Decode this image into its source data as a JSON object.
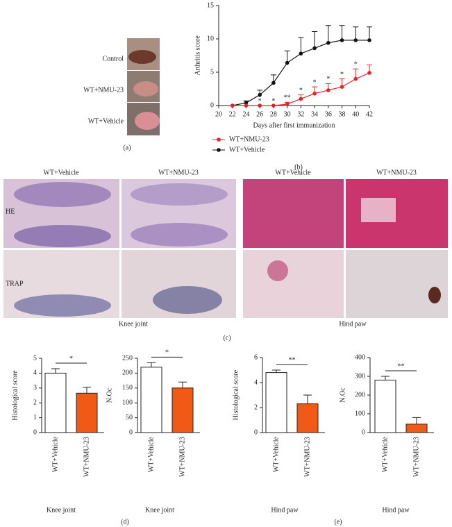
{
  "panel_labels": {
    "a": "(a)",
    "b": "(b)",
    "c": "(c)",
    "d": "(d)",
    "e": "(e)"
  },
  "photos": {
    "rows": [
      "Control",
      "WT+NMU-23",
      "WT+Vehicle"
    ]
  },
  "histology": {
    "columns": [
      "WT+Vehicle",
      "WT+NMU-23",
      "WT+Vehicle",
      "WT+NMU-23"
    ],
    "rows": [
      "HE",
      "TRAP"
    ],
    "captions": [
      "Knee joint",
      "Hind paw"
    ]
  },
  "chart_data": [
    {
      "type": "line",
      "ylabel": "Arthritis score",
      "xlabel": "Days after first immunization",
      "x": [
        22,
        24,
        26,
        28,
        30,
        32,
        34,
        36,
        38,
        40,
        42
      ],
      "series": [
        {
          "name": "WT+NMU-23",
          "color": "#e8202a",
          "values": [
            0,
            0,
            0,
            0,
            0.2,
            1,
            1.8,
            2.3,
            2.8,
            4,
            4.9
          ],
          "errors": [
            0,
            0,
            0,
            0,
            0.3,
            0.6,
            1,
            1,
            1.2,
            1.5,
            1.2
          ]
        },
        {
          "name": "WT+Vehicle",
          "color": "#111111",
          "values": [
            0,
            0.4,
            1.6,
            3.4,
            6.4,
            7.8,
            8.6,
            9.4,
            9.8,
            9.8,
            9.8
          ],
          "errors": [
            0,
            0.3,
            0.7,
            1.2,
            1.8,
            2.4,
            2.5,
            2.6,
            2.2,
            2,
            2
          ]
        }
      ],
      "annotations": [
        {
          "text": "*",
          "x": 26
        },
        {
          "text": "*",
          "x": 28
        },
        {
          "text": "**",
          "x": 30
        },
        {
          "text": "*",
          "x": 32
        },
        {
          "text": "*",
          "x": 34
        },
        {
          "text": "*",
          "x": 36
        },
        {
          "text": "*",
          "x": 38
        },
        {
          "text": "*",
          "x": 40
        }
      ],
      "xlim": [
        20,
        42
      ],
      "xticks": [
        20,
        22,
        24,
        26,
        28,
        30,
        32,
        34,
        36,
        38,
        40,
        42
      ],
      "ylim": [
        0,
        15
      ],
      "yticks": [
        0,
        5,
        10,
        15
      ]
    },
    {
      "type": "bar",
      "ylabel": "Histological score",
      "xlabel": "Knee joint",
      "categories": [
        "WT+Vehicle",
        "WT+NMU-23"
      ],
      "values": [
        4.0,
        2.65
      ],
      "errors": [
        0.3,
        0.4
      ],
      "colors": [
        "#ffffff",
        "#f05a16"
      ],
      "significance": "*",
      "ylim": [
        0,
        5
      ],
      "yticks": [
        0,
        1,
        2,
        3,
        4,
        5
      ]
    },
    {
      "type": "bar",
      "ylabel": "N.Oc",
      "xlabel": "Knee joint",
      "categories": [
        "WT+Vehicle",
        "WT+NMU-23"
      ],
      "values": [
        220,
        150
      ],
      "errors": [
        15,
        20
      ],
      "colors": [
        "#ffffff",
        "#f05a16"
      ],
      "significance": "*",
      "ylim": [
        0,
        250
      ],
      "yticks": [
        0,
        50,
        100,
        150,
        200,
        250
      ]
    },
    {
      "type": "bar",
      "ylabel": "Histological score",
      "xlabel": "Hind paw",
      "categories": [
        "WT+Vehicle",
        "WT+NMU-23"
      ],
      "values": [
        4.8,
        2.3
      ],
      "errors": [
        0.2,
        0.7
      ],
      "colors": [
        "#ffffff",
        "#f05a16"
      ],
      "significance": "**",
      "ylim": [
        0,
        6
      ],
      "yticks": [
        0,
        2,
        4,
        6
      ]
    },
    {
      "type": "bar",
      "ylabel": "N.Oc",
      "xlabel": "Hind paw",
      "categories": [
        "WT+Vehicle",
        "WT+NMU-23"
      ],
      "values": [
        280,
        45
      ],
      "errors": [
        20,
        35
      ],
      "colors": [
        "#ffffff",
        "#f05a16"
      ],
      "significance": "**",
      "ylim": [
        0,
        400
      ],
      "yticks": [
        0,
        100,
        200,
        300,
        400
      ]
    }
  ]
}
